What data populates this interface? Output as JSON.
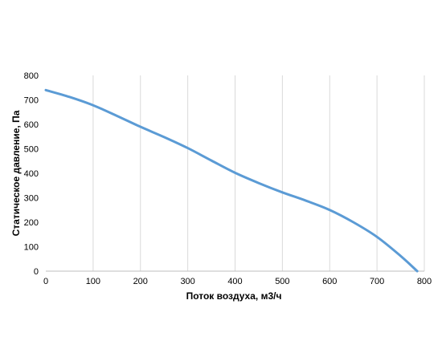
{
  "chart_data": {
    "type": "line",
    "xlabel": "Поток воздуха, м3/ч",
    "ylabel": "Статическое давление, Па",
    "xlim": [
      0,
      800
    ],
    "ylim": [
      0,
      800
    ],
    "x_ticks": [
      "0",
      "100",
      "200",
      "300",
      "400",
      "500",
      "600",
      "700",
      "800"
    ],
    "y_ticks": [
      "0",
      "100",
      "200",
      "300",
      "400",
      "500",
      "600",
      "700",
      "800"
    ],
    "grid": "vertical",
    "series": [
      {
        "color": "#5b9bd5",
        "x": [
          0,
          50,
          100,
          150,
          200,
          250,
          300,
          350,
          400,
          450,
          500,
          550,
          600,
          650,
          700,
          750,
          785
        ],
        "y": [
          740,
          712,
          678,
          635,
          590,
          548,
          503,
          452,
          402,
          360,
          322,
          288,
          250,
          200,
          140,
          62,
          0
        ]
      }
    ]
  }
}
